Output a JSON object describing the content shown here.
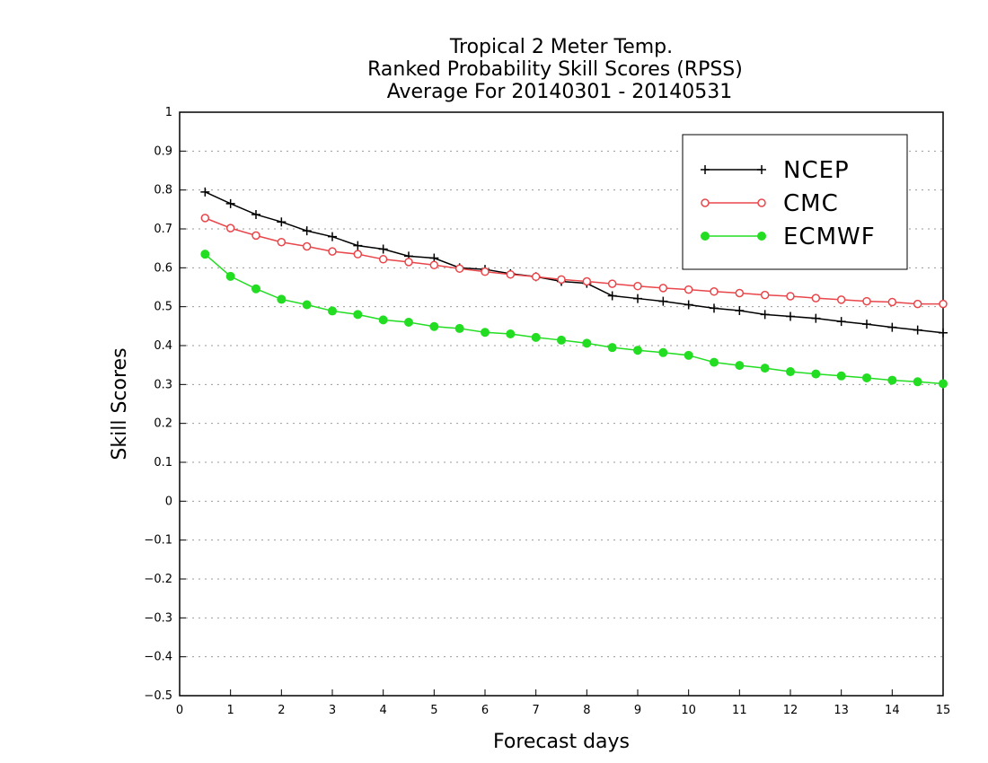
{
  "chart_data": {
    "type": "line",
    "title_lines": [
      "Tropical 2 Meter Temp.",
      "Ranked Probability Skill Scores (RPSS)",
      "Average For 20140301 - 20140531"
    ],
    "xlabel": "Forecast days",
    "ylabel": "Skill Scores",
    "xlim": [
      0,
      15
    ],
    "ylim": [
      -0.5,
      1
    ],
    "xticks": [
      "0",
      "1",
      "2",
      "3",
      "4",
      "5",
      "6",
      "7",
      "8",
      "9",
      "10",
      "11",
      "12",
      "13",
      "14",
      "15"
    ],
    "yticks": [
      "−0.5",
      "−0.4",
      "−0.3",
      "−0.2",
      "−0.1",
      "0",
      "0.1",
      "0.2",
      "0.3",
      "0.4",
      "0.5",
      "0.6",
      "0.7",
      "0.8",
      "0.9",
      "1"
    ],
    "grid": "horizontal-dotted",
    "legend_position": "top-right",
    "x": [
      0.5,
      1,
      1.5,
      2,
      2.5,
      3,
      3.5,
      4,
      4.5,
      5,
      5.5,
      6,
      6.5,
      7,
      7.5,
      8,
      8.5,
      9,
      9.5,
      10,
      10.5,
      11,
      11.5,
      12,
      12.5,
      13,
      13.5,
      14,
      14.5,
      15
    ],
    "series": [
      {
        "name": "NCEP",
        "color": "#000000",
        "marker": "plus",
        "values": [
          0.795,
          0.765,
          0.737,
          0.718,
          0.695,
          0.68,
          0.657,
          0.648,
          0.63,
          0.625,
          0.6,
          0.596,
          0.585,
          0.577,
          0.565,
          0.56,
          0.528,
          0.521,
          0.514,
          0.505,
          0.496,
          0.49,
          0.48,
          0.475,
          0.47,
          0.462,
          0.455,
          0.447,
          0.44,
          0.433
        ]
      },
      {
        "name": "CMC",
        "color": "#e8464a",
        "marker": "open-circle",
        "values": [
          0.728,
          0.702,
          0.683,
          0.666,
          0.655,
          0.642,
          0.635,
          0.622,
          0.615,
          0.607,
          0.598,
          0.59,
          0.583,
          0.577,
          0.57,
          0.565,
          0.559,
          0.553,
          0.548,
          0.544,
          0.539,
          0.535,
          0.53,
          0.527,
          0.522,
          0.518,
          0.514,
          0.512,
          0.507,
          0.507
        ]
      },
      {
        "name": "ECMWF",
        "color": "#22dd22",
        "marker": "filled-circle",
        "values": [
          0.635,
          0.578,
          0.546,
          0.519,
          0.505,
          0.489,
          0.48,
          0.466,
          0.46,
          0.449,
          0.444,
          0.434,
          0.43,
          0.421,
          0.414,
          0.406,
          0.395,
          0.388,
          0.382,
          0.375,
          0.357,
          0.349,
          0.342,
          0.333,
          0.327,
          0.322,
          0.317,
          0.311,
          0.307,
          0.302
        ]
      }
    ]
  }
}
